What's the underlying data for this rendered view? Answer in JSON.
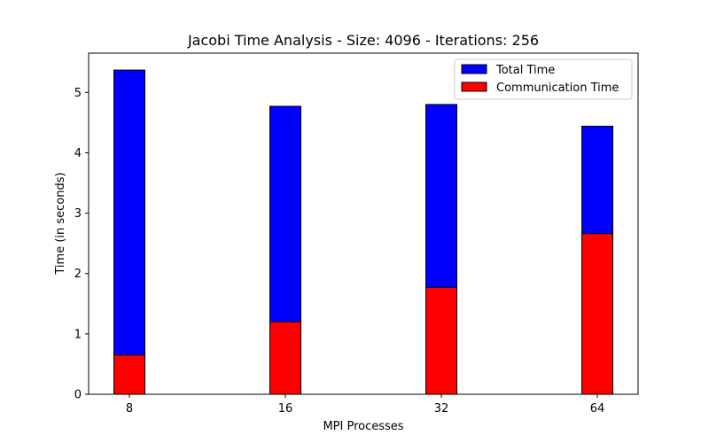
{
  "chart_data": {
    "type": "bar",
    "title": "Jacobi Time Analysis - Size: 4096 - Iterations: 256",
    "xlabel": "MPI Processes",
    "ylabel": "Time (in seconds)",
    "categories": [
      "8",
      "16",
      "32",
      "64"
    ],
    "series": [
      {
        "name": "Total Time",
        "values": [
          5.37,
          4.77,
          4.8,
          4.44
        ],
        "color": "#0000ff"
      },
      {
        "name": "Communication Time",
        "values": [
          0.65,
          1.2,
          1.77,
          2.66
        ],
        "color": "#ff0000"
      }
    ],
    "ylim": [
      0,
      5.65
    ],
    "yticks": [
      "0",
      "1",
      "2",
      "3",
      "4",
      "5"
    ],
    "grid": false,
    "legend_position": "top-right",
    "overlay": true
  }
}
